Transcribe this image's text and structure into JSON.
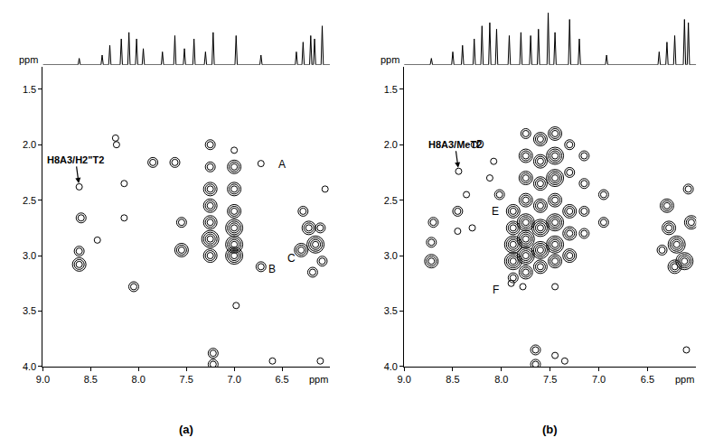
{
  "chart_data": [
    {
      "type": "contour",
      "label": "(a)",
      "xlabel": "ppm",
      "ylabel": "ppm",
      "color": "#000000",
      "grid": false,
      "xlim": [
        9.0,
        6.0
      ],
      "ylim": [
        4.0,
        1.3
      ],
      "xticks": [
        {
          "value": 9,
          "label": "9.0"
        },
        {
          "value": 8.5,
          "label": "8.5"
        },
        {
          "value": 8,
          "label": "8.0"
        },
        {
          "value": 7.5,
          "label": "7.5"
        },
        {
          "value": 7,
          "label": "7.0"
        },
        {
          "value": 6.5,
          "label": "6.5"
        }
      ],
      "yticks": [
        1.5,
        {
          "value": 2,
          "label": "2.0"
        },
        2.5,
        {
          "value": 3,
          "label": "3.0"
        },
        3.5,
        {
          "value": 4,
          "label": "4.0"
        }
      ],
      "peaks": [
        {
          "x": 8.62,
          "y": 2.38,
          "level": 1
        },
        {
          "x": 8.23,
          "y": 2.0,
          "level": 1
        },
        {
          "x": 8.24,
          "y": 1.94,
          "level": 1
        },
        {
          "x": 8.6,
          "y": 2.66,
          "level": 2
        },
        {
          "x": 8.43,
          "y": 2.86,
          "level": 1
        },
        {
          "x": 8.15,
          "y": 2.66,
          "level": 1
        },
        {
          "x": 8.62,
          "y": 3.08,
          "level": 3
        },
        {
          "x": 8.62,
          "y": 2.96,
          "level": 2
        },
        {
          "x": 8.05,
          "y": 3.28,
          "level": 2
        },
        {
          "x": 8.15,
          "y": 2.35,
          "level": 1
        },
        {
          "x": 7.85,
          "y": 2.16,
          "level": 2
        },
        {
          "x": 7.62,
          "y": 2.16,
          "level": 2
        },
        {
          "x": 7.55,
          "y": 2.7,
          "level": 2
        },
        {
          "x": 7.55,
          "y": 2.95,
          "level": 3
        },
        {
          "x": 7.25,
          "y": 2.0,
          "level": 2
        },
        {
          "x": 7.25,
          "y": 2.2,
          "level": 2
        },
        {
          "x": 7.25,
          "y": 2.4,
          "level": 3
        },
        {
          "x": 7.25,
          "y": 2.55,
          "level": 3
        },
        {
          "x": 7.25,
          "y": 2.7,
          "level": 3
        },
        {
          "x": 7.25,
          "y": 2.85,
          "level": 4
        },
        {
          "x": 7.25,
          "y": 3.0,
          "level": 3
        },
        {
          "x": 7.0,
          "y": 2.05,
          "level": 1
        },
        {
          "x": 7.0,
          "y": 2.2,
          "level": 3
        },
        {
          "x": 7.0,
          "y": 2.4,
          "level": 3
        },
        {
          "x": 7.0,
          "y": 2.6,
          "level": 3
        },
        {
          "x": 7.0,
          "y": 2.75,
          "level": 4
        },
        {
          "x": 7.0,
          "y": 2.9,
          "level": 4
        },
        {
          "x": 7.0,
          "y": 3.0,
          "level": 4
        },
        {
          "x": 6.72,
          "y": 2.17,
          "level": 1
        },
        {
          "x": 6.72,
          "y": 3.1,
          "level": 2
        },
        {
          "x": 6.28,
          "y": 2.6,
          "level": 2
        },
        {
          "x": 6.22,
          "y": 2.75,
          "level": 3
        },
        {
          "x": 6.15,
          "y": 2.9,
          "level": 4
        },
        {
          "x": 6.3,
          "y": 2.95,
          "level": 3
        },
        {
          "x": 6.1,
          "y": 2.75,
          "level": 2
        },
        {
          "x": 6.08,
          "y": 3.05,
          "level": 2
        },
        {
          "x": 6.05,
          "y": 2.4,
          "level": 1
        },
        {
          "x": 6.18,
          "y": 3.15,
          "level": 2
        },
        {
          "x": 7.22,
          "y": 3.88,
          "level": 2
        },
        {
          "x": 7.22,
          "y": 3.98,
          "level": 2
        },
        {
          "x": 6.6,
          "y": 3.95,
          "level": 1
        },
        {
          "x": 6.1,
          "y": 3.95,
          "level": 1
        },
        {
          "x": 6.98,
          "y": 3.45,
          "level": 1
        }
      ],
      "spectrum": {
        "ylim": [
          0,
          100
        ],
        "x": [
          8.62,
          8.38,
          8.3,
          8.18,
          8.1,
          8.02,
          7.95,
          7.75,
          7.62,
          7.52,
          7.42,
          7.3,
          7.22,
          6.98,
          6.72,
          6.35,
          6.28,
          6.2,
          6.16,
          6.08
        ],
        "values": [
          10,
          15,
          30,
          40,
          50,
          40,
          25,
          20,
          45,
          25,
          40,
          20,
          50,
          45,
          15,
          20,
          35,
          45,
          40,
          60
        ]
      },
      "annotations": [
        {
          "text": "H8A3/H2\"T2",
          "x": 8.62,
          "y": 2.38,
          "arrow": true
        },
        {
          "text": "A",
          "x": 6.5,
          "y": 2.18,
          "arrow": false
        },
        {
          "text": "B",
          "x": 6.6,
          "y": 3.12,
          "arrow": false
        },
        {
          "text": "C",
          "x": 6.4,
          "y": 3.02,
          "arrow": false
        }
      ]
    },
    {
      "type": "contour",
      "label": "(b)",
      "xlabel": "ppm",
      "ylabel": "ppm",
      "color": "#000000",
      "grid": false,
      "xlim": [
        9.0,
        6.0
      ],
      "ylim": [
        4.0,
        1.3
      ],
      "xticks": [
        {
          "value": 9,
          "label": "9.0"
        },
        {
          "value": 8.5,
          "label": "8.5"
        },
        {
          "value": 8,
          "label": "8.0"
        },
        {
          "value": 7.5,
          "label": "7.5"
        },
        {
          "value": 7,
          "label": "7.0"
        },
        {
          "value": 6.5,
          "label": "6.5"
        }
      ],
      "yticks": [
        1.5,
        {
          "value": 2,
          "label": "2.0"
        },
        2.5,
        {
          "value": 3,
          "label": "3.0"
        },
        3.5,
        {
          "value": 4,
          "label": "4.0"
        }
      ],
      "peaks": [
        {
          "x": 8.44,
          "y": 2.24,
          "level": 1
        },
        {
          "x": 8.28,
          "y": 2.0,
          "level": 1
        },
        {
          "x": 8.7,
          "y": 2.7,
          "level": 2
        },
        {
          "x": 8.72,
          "y": 3.05,
          "level": 3
        },
        {
          "x": 8.72,
          "y": 2.88,
          "level": 2
        },
        {
          "x": 8.45,
          "y": 2.6,
          "level": 2
        },
        {
          "x": 8.45,
          "y": 2.78,
          "level": 1
        },
        {
          "x": 8.36,
          "y": 2.45,
          "level": 1
        },
        {
          "x": 8.3,
          "y": 2.75,
          "level": 1
        },
        {
          "x": 8.12,
          "y": 2.3,
          "level": 1
        },
        {
          "x": 8.08,
          "y": 2.15,
          "level": 1
        },
        {
          "x": 8.02,
          "y": 2.45,
          "level": 2
        },
        {
          "x": 7.88,
          "y": 2.6,
          "level": 3
        },
        {
          "x": 7.88,
          "y": 2.75,
          "level": 3
        },
        {
          "x": 7.88,
          "y": 2.9,
          "level": 4
        },
        {
          "x": 7.88,
          "y": 3.05,
          "level": 4
        },
        {
          "x": 7.88,
          "y": 3.2,
          "level": 2
        },
        {
          "x": 7.75,
          "y": 1.9,
          "level": 2
        },
        {
          "x": 7.75,
          "y": 2.1,
          "level": 3
        },
        {
          "x": 7.75,
          "y": 2.3,
          "level": 3
        },
        {
          "x": 7.75,
          "y": 2.5,
          "level": 3
        },
        {
          "x": 7.75,
          "y": 2.7,
          "level": 4
        },
        {
          "x": 7.75,
          "y": 2.85,
          "level": 4
        },
        {
          "x": 7.75,
          "y": 3.0,
          "level": 4
        },
        {
          "x": 7.75,
          "y": 3.15,
          "level": 3
        },
        {
          "x": 7.6,
          "y": 1.95,
          "level": 3
        },
        {
          "x": 7.6,
          "y": 2.15,
          "level": 3
        },
        {
          "x": 7.6,
          "y": 2.35,
          "level": 3
        },
        {
          "x": 7.6,
          "y": 2.55,
          "level": 3
        },
        {
          "x": 7.6,
          "y": 2.75,
          "level": 4
        },
        {
          "x": 7.6,
          "y": 2.95,
          "level": 4
        },
        {
          "x": 7.6,
          "y": 3.1,
          "level": 3
        },
        {
          "x": 7.45,
          "y": 1.9,
          "level": 3
        },
        {
          "x": 7.45,
          "y": 2.1,
          "level": 4
        },
        {
          "x": 7.45,
          "y": 2.3,
          "level": 4
        },
        {
          "x": 7.45,
          "y": 2.5,
          "level": 3
        },
        {
          "x": 7.45,
          "y": 2.7,
          "level": 4
        },
        {
          "x": 7.45,
          "y": 2.9,
          "level": 4
        },
        {
          "x": 7.45,
          "y": 3.05,
          "level": 3
        },
        {
          "x": 7.3,
          "y": 2.0,
          "level": 2
        },
        {
          "x": 7.3,
          "y": 2.25,
          "level": 2
        },
        {
          "x": 7.3,
          "y": 2.6,
          "level": 3
        },
        {
          "x": 7.3,
          "y": 2.8,
          "level": 3
        },
        {
          "x": 7.3,
          "y": 3.0,
          "level": 3
        },
        {
          "x": 7.15,
          "y": 2.1,
          "level": 2
        },
        {
          "x": 7.15,
          "y": 2.35,
          "level": 2
        },
        {
          "x": 7.15,
          "y": 2.6,
          "level": 2
        },
        {
          "x": 7.15,
          "y": 2.8,
          "level": 2
        },
        {
          "x": 6.95,
          "y": 2.45,
          "level": 2
        },
        {
          "x": 6.95,
          "y": 2.7,
          "level": 2
        },
        {
          "x": 7.9,
          "y": 3.25,
          "level": 1
        },
        {
          "x": 7.78,
          "y": 3.28,
          "level": 1
        },
        {
          "x": 7.45,
          "y": 3.28,
          "level": 1
        },
        {
          "x": 6.3,
          "y": 2.55,
          "level": 3
        },
        {
          "x": 6.28,
          "y": 2.75,
          "level": 3
        },
        {
          "x": 6.2,
          "y": 2.9,
          "level": 4
        },
        {
          "x": 6.12,
          "y": 3.05,
          "level": 4
        },
        {
          "x": 6.05,
          "y": 2.7,
          "level": 3
        },
        {
          "x": 6.08,
          "y": 2.4,
          "level": 2
        },
        {
          "x": 6.22,
          "y": 3.1,
          "level": 3
        },
        {
          "x": 6.35,
          "y": 2.95,
          "level": 2
        },
        {
          "x": 7.65,
          "y": 3.85,
          "level": 2
        },
        {
          "x": 7.65,
          "y": 3.98,
          "level": 2
        },
        {
          "x": 7.45,
          "y": 3.9,
          "level": 1
        },
        {
          "x": 7.35,
          "y": 3.95,
          "level": 1
        },
        {
          "x": 6.1,
          "y": 3.85,
          "level": 1
        }
      ],
      "spectrum": {
        "ylim": [
          0,
          100
        ],
        "x": [
          8.72,
          8.5,
          8.4,
          8.28,
          8.2,
          8.12,
          8.05,
          7.92,
          7.8,
          7.7,
          7.62,
          7.52,
          7.45,
          7.3,
          7.2,
          6.92,
          6.38,
          6.3,
          6.22,
          6.12,
          6.08
        ],
        "values": [
          10,
          20,
          30,
          40,
          60,
          65,
          55,
          45,
          50,
          45,
          55,
          80,
          50,
          70,
          40,
          15,
          20,
          35,
          45,
          70,
          65
        ]
      },
      "annotations": [
        {
          "text": "H8A3/MeT2",
          "x": 8.44,
          "y": 2.24,
          "arrow": true
        },
        {
          "text": "D",
          "x": 8.22,
          "y": 2.0,
          "arrow": false
        },
        {
          "text": "E",
          "x": 8.06,
          "y": 2.6,
          "arrow": false
        },
        {
          "text": "F",
          "x": 8.06,
          "y": 3.31,
          "arrow": false
        }
      ]
    }
  ]
}
